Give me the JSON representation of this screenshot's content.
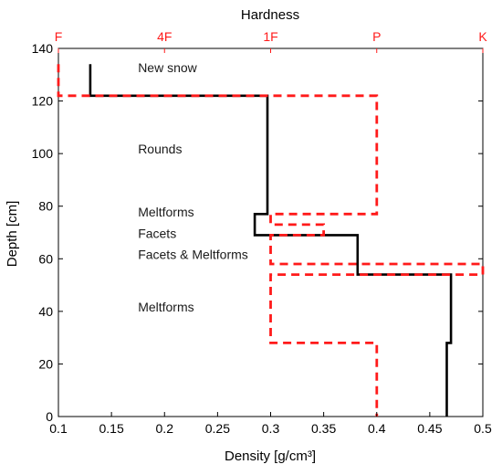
{
  "chart_data": {
    "type": "line",
    "title": "",
    "xlabel": "Density [g/cm³]",
    "ylabel": "Depth [cm]",
    "top_axis_label": "Hardness",
    "xlim": [
      0.1,
      0.5
    ],
    "ylim": [
      0,
      140
    ],
    "x_ticks": [
      0.1,
      0.15,
      0.2,
      0.25,
      0.3,
      0.35,
      0.4,
      0.45,
      0.5
    ],
    "x_tick_labels": [
      "0.1",
      "0.15",
      "0.2",
      "0.25",
      "0.3",
      "0.35",
      "0.4",
      "0.45",
      "0.5"
    ],
    "y_ticks": [
      0,
      20,
      40,
      60,
      80,
      100,
      120,
      140
    ],
    "y_tick_labels": [
      "0",
      "20",
      "40",
      "60",
      "80",
      "100",
      "120",
      "140"
    ],
    "top_ticks": [
      0.1,
      0.2,
      0.3,
      0.4,
      0.5
    ],
    "top_tick_labels": [
      "F",
      "4F",
      "1F",
      "P",
      "K"
    ],
    "grid": false,
    "series": [
      {
        "key": "density",
        "color": "#000000",
        "style": "solid",
        "points": [
          [
            0.13,
            134
          ],
          [
            0.13,
            122
          ],
          [
            0.297,
            122
          ],
          [
            0.297,
            77
          ],
          [
            0.285,
            77
          ],
          [
            0.285,
            69
          ],
          [
            0.382,
            69
          ],
          [
            0.382,
            54
          ],
          [
            0.47,
            54
          ],
          [
            0.47,
            28
          ],
          [
            0.466,
            28
          ],
          [
            0.466,
            0
          ]
        ]
      },
      {
        "key": "hardness",
        "color": "#ff1a1a",
        "style": "dashed",
        "points": [
          [
            0.1,
            134
          ],
          [
            0.1,
            122
          ],
          [
            0.4,
            122
          ],
          [
            0.4,
            77
          ],
          [
            0.3,
            77
          ],
          [
            0.3,
            73
          ],
          [
            0.35,
            73
          ],
          [
            0.35,
            69
          ],
          [
            0.3,
            69
          ],
          [
            0.3,
            58
          ],
          [
            0.5,
            58
          ],
          [
            0.5,
            54
          ],
          [
            0.3,
            54
          ],
          [
            0.3,
            28
          ],
          [
            0.4,
            28
          ],
          [
            0.4,
            0
          ]
        ]
      }
    ],
    "annotations": [
      {
        "text": "New snow",
        "x": 0.175,
        "y": 131
      },
      {
        "text": "Rounds",
        "x": 0.175,
        "y": 100
      },
      {
        "text": "Meltforms",
        "x": 0.175,
        "y": 76
      },
      {
        "text": "Facets",
        "x": 0.175,
        "y": 68
      },
      {
        "text": "Facets & Meltforms",
        "x": 0.175,
        "y": 60
      },
      {
        "text": "Meltforms",
        "x": 0.175,
        "y": 40
      }
    ],
    "colors": {
      "hardness_axis": "#ff1a1a",
      "density_line": "#000000"
    }
  }
}
